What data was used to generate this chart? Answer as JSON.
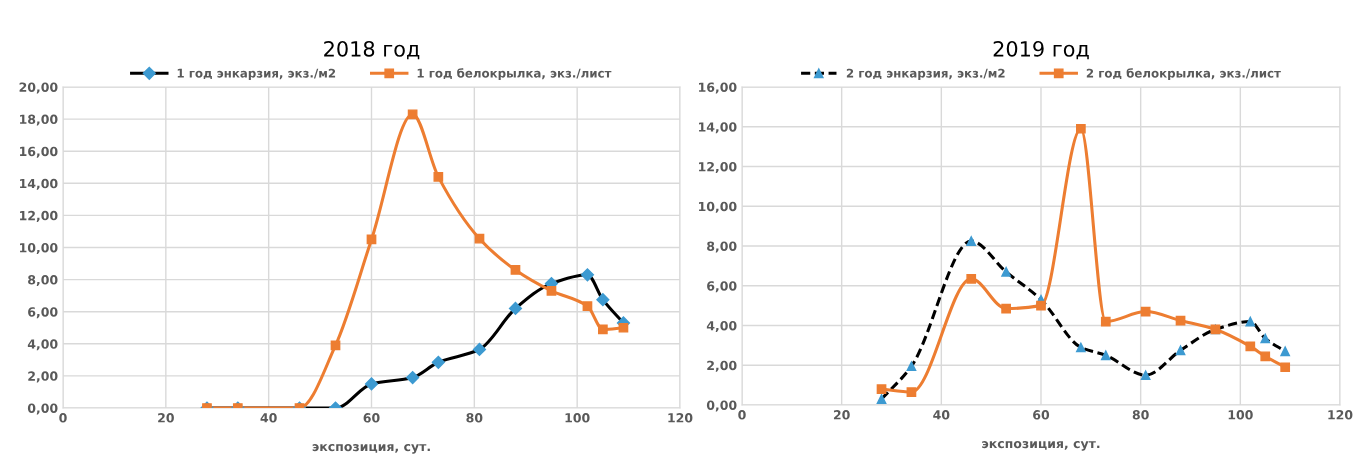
{
  "chart_data": [
    {
      "type": "line",
      "title": "2018 год",
      "xlabel": "экспозиция, сут.",
      "legend": "top",
      "grid": true,
      "xlim": [
        0,
        120
      ],
      "xticks": [
        0,
        20,
        40,
        60,
        80,
        100,
        120
      ],
      "ylim": [
        0,
        20
      ],
      "yticks": [
        {
          "value": 0,
          "label": "0,00"
        },
        {
          "value": 2,
          "label": "2,00"
        },
        {
          "value": 4,
          "label": "4,00"
        },
        {
          "value": 6,
          "label": "6,00"
        },
        {
          "value": 8,
          "label": "8,00"
        },
        {
          "value": 10,
          "label": "10,00"
        },
        {
          "value": 12,
          "label": "12,00"
        },
        {
          "value": 14,
          "label": "14,00"
        },
        {
          "value": 16,
          "label": "16,00"
        },
        {
          "value": 18,
          "label": "18,00"
        },
        {
          "value": 20,
          "label": "20,00"
        }
      ],
      "x": [
        28,
        34,
        46,
        53,
        60,
        68,
        73,
        81,
        88,
        95,
        102,
        105,
        109
      ],
      "series": [
        {
          "name": "1 год энкарзия, экз./м2",
          "color": "#000000",
          "marker": "diamond",
          "line_style": "solid",
          "values": [
            0,
            0,
            0,
            0,
            1.5,
            1.9,
            2.85,
            3.65,
            6.2,
            7.75,
            8.3,
            6.75,
            5.3
          ]
        },
        {
          "name": "1 год белокрылка, экз./лист",
          "color": "#ed7d31",
          "marker": "square",
          "line_style": "solid",
          "values": [
            0,
            0,
            0,
            3.9,
            10.5,
            18.3,
            14.4,
            10.55,
            8.6,
            7.3,
            6.35,
            4.9,
            5.0
          ]
        }
      ]
    },
    {
      "type": "line",
      "title": "2019 год",
      "xlabel": "экспозиция, сут.",
      "legend": "top",
      "grid": true,
      "xlim": [
        0,
        120
      ],
      "xticks": [
        0,
        20,
        40,
        60,
        80,
        100,
        120
      ],
      "ylim": [
        0,
        16
      ],
      "yticks": [
        {
          "value": 0,
          "label": "0,00"
        },
        {
          "value": 2,
          "label": "2,00"
        },
        {
          "value": 4,
          "label": "4,00"
        },
        {
          "value": 6,
          "label": "6,00"
        },
        {
          "value": 8,
          "label": "8,00"
        },
        {
          "value": 10,
          "label": "10,00"
        },
        {
          "value": 12,
          "label": "12,00"
        },
        {
          "value": 14,
          "label": "14,00"
        },
        {
          "value": 16,
          "label": "16,00"
        }
      ],
      "x": [
        28,
        34,
        46,
        53,
        60,
        68,
        73,
        81,
        88,
        95,
        102,
        105,
        109
      ],
      "series": [
        {
          "name": "2 год энкарзия, экз./м2",
          "color": "#000000",
          "marker": "triangle",
          "line_style": "dashed",
          "values": [
            0.3,
            1.95,
            8.25,
            6.7,
            5.3,
            2.9,
            2.5,
            1.5,
            2.75,
            3.8,
            4.2,
            3.35,
            2.7
          ]
        },
        {
          "name": "2 год белокрылка, экз./лист",
          "color": "#ed7d31",
          "marker": "square",
          "line_style": "solid",
          "values": [
            0.8,
            0.65,
            6.35,
            4.85,
            5.0,
            13.9,
            4.2,
            4.7,
            4.25,
            3.8,
            2.95,
            2.45,
            1.9
          ]
        }
      ]
    }
  ]
}
